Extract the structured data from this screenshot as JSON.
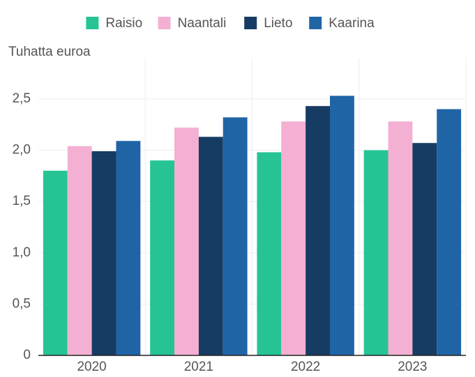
{
  "chart_data": {
    "type": "bar",
    "y_label": "Tuhatta euroa",
    "categories": [
      "2020",
      "2021",
      "2022",
      "2023"
    ],
    "series": [
      {
        "name": "Raisio",
        "color": "#26c495",
        "values": [
          1.8,
          1.9,
          1.98,
          2.0
        ]
      },
      {
        "name": "Naantali",
        "color": "#f4b0d2",
        "values": [
          2.04,
          2.22,
          2.28,
          2.28
        ]
      },
      {
        "name": "Lieto",
        "color": "#163c64",
        "values": [
          1.99,
          2.13,
          2.43,
          2.07
        ]
      },
      {
        "name": "Kaarina",
        "color": "#1f65a6",
        "values": [
          2.09,
          2.32,
          2.53,
          2.4
        ]
      }
    ],
    "ylim": [
      0,
      2.9
    ],
    "yticks": [
      0,
      {
        "value": 0.5,
        "label": "0,5"
      },
      {
        "value": 1,
        "label": "1,0"
      },
      {
        "value": 1.5,
        "label": "1,5"
      },
      {
        "value": 2,
        "label": "2,0"
      },
      {
        "value": 2.5,
        "label": "2,5"
      }
    ],
    "grid": true,
    "legend": "top"
  }
}
